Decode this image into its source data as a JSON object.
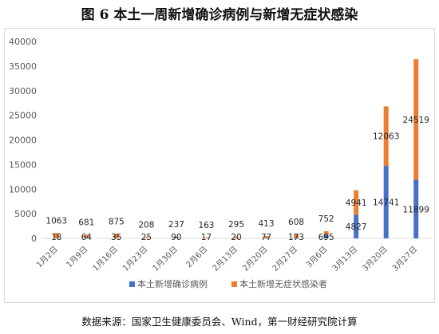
{
  "title": "图 6  本土一周新增确诊病例与新增无症状感染",
  "source": "数据来源：国家卫生健康委员会、Wind，第一财经研究院计算",
  "chart_data": {
    "type": "bar",
    "stacked": true,
    "categories": [
      "1月2日",
      "1月9日",
      "1月16日",
      "1月23日",
      "1月30日",
      "2月6日",
      "2月13日",
      "2月20日",
      "2月27日",
      "3月6日",
      "3月13日",
      "3月20日",
      "3月27日"
    ],
    "series": [
      {
        "name": "本土新增确诊病例",
        "color": "#4472c4",
        "values": [
          18,
          64,
          35,
          25,
          90,
          17,
          20,
          77,
          173,
          695,
          4827,
          14741,
          11899
        ]
      },
      {
        "name": "本土新增无症状感染者",
        "color": "#ed7d31",
        "values": [
          1063,
          681,
          875,
          208,
          237,
          163,
          295,
          413,
          608,
          752,
          4941,
          12063,
          24519
        ]
      }
    ],
    "data_labels": {
      "bottom": [
        "18",
        "64",
        "35",
        "25",
        "90",
        "17",
        "20",
        "77",
        "173",
        "695",
        "4827",
        "14741",
        "11899"
      ],
      "top": [
        "1063",
        "681",
        "875",
        "208",
        "237",
        "163",
        "295",
        "413",
        "608",
        "752",
        "4941",
        "12063",
        "24519"
      ]
    },
    "ylim": [
      0,
      40000
    ],
    "yticks": [
      "0",
      "5000",
      "10000",
      "15000",
      "20000",
      "25000",
      "30000",
      "35000",
      "40000"
    ],
    "grid": false,
    "legend_position": "bottom"
  }
}
